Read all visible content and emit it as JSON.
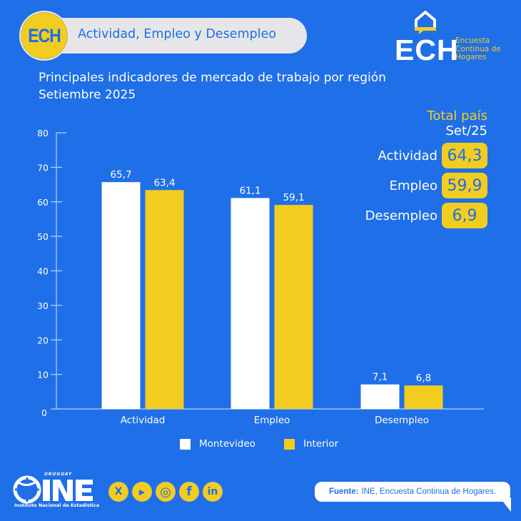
{
  "header": {
    "badge": "ECH",
    "title": "Actividad, Empleo y Desempleo"
  },
  "logo": {
    "main": "ECH",
    "subtitle_lines": [
      "Encuesta",
      "Continua de",
      "Hogares"
    ]
  },
  "subtitle": {
    "line1": "Principales indicadores de mercado de trabajo por región",
    "line2": "Setiembre 2025"
  },
  "totals": {
    "title": "Total país",
    "period": "Set/25",
    "rows": [
      {
        "label": "Actividad",
        "value": "64,3"
      },
      {
        "label": "Empleo",
        "value": "59,9"
      },
      {
        "label": "Desempleo",
        "value": "6,9"
      }
    ]
  },
  "colors": {
    "background": "#1f6fe8",
    "montevideo": "#ffffff",
    "interior": "#f2cd1f",
    "accent": "#f2cd1f"
  },
  "chart_data": {
    "type": "bar",
    "title": "Principales indicadores de mercado de trabajo por región",
    "subtitle": "Setiembre 2025",
    "categories": [
      "Actividad",
      "Empleo",
      "Desempleo"
    ],
    "series": [
      {
        "name": "Montevideo",
        "values": [
          65.7,
          61.1,
          7.1
        ],
        "labels": [
          "65,7",
          "61,1",
          "7,1"
        ],
        "color": "#ffffff"
      },
      {
        "name": "Interior",
        "values": [
          63.4,
          59.1,
          6.8
        ],
        "labels": [
          "63,4",
          "59,1",
          "6,8"
        ],
        "color": "#f2cd1f"
      }
    ],
    "xlabel": "",
    "ylabel": "",
    "ylim": [
      0,
      80
    ],
    "yticks": [
      0,
      10,
      20,
      30,
      40,
      50,
      60,
      70,
      80
    ],
    "grid": false,
    "legend": "bottom"
  },
  "legend": {
    "items": [
      {
        "label": "Montevideo"
      },
      {
        "label": "Interior"
      }
    ]
  },
  "footer": {
    "ine_country": "URUGUAY",
    "ine_name": "INE",
    "ine_full": "Instituto Nacional de Estadística",
    "socials": [
      {
        "name": "x",
        "glyph": "X"
      },
      {
        "name": "youtube",
        "glyph": "▶"
      },
      {
        "name": "instagram",
        "glyph": "◎"
      },
      {
        "name": "facebook",
        "glyph": "f"
      },
      {
        "name": "linkedin",
        "glyph": "in"
      }
    ],
    "source_label": "Fuente:",
    "source_text": "INE, Encuesta Continua de Hogares."
  }
}
